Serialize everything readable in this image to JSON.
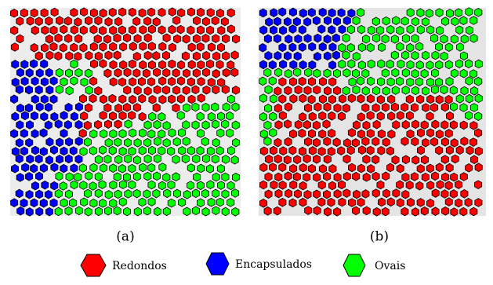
{
  "panels": [
    {
      "caption": "(a)"
    },
    {
      "caption": "(b)"
    }
  ],
  "legend": [
    {
      "label": "Redondos"
    },
    {
      "label": "Encapsulados"
    },
    {
      "label": "Ovais"
    }
  ]
}
